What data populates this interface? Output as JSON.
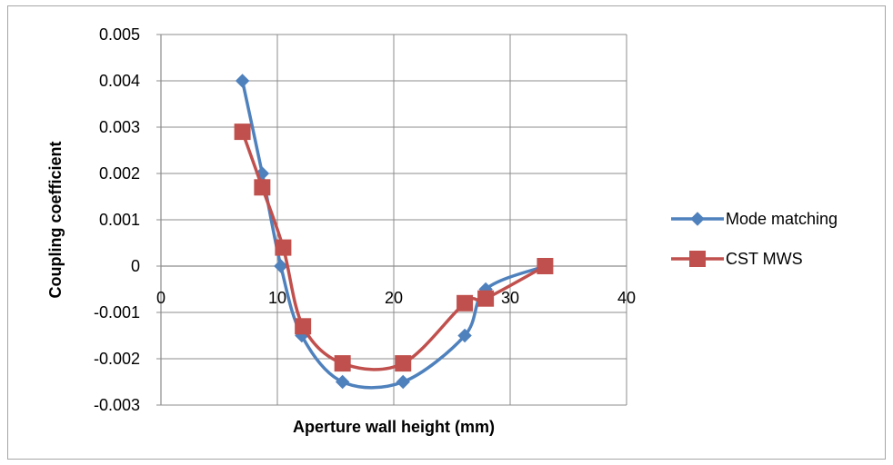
{
  "chart_data": {
    "type": "scatter",
    "title": "",
    "xlabel": "Aperture wall height (mm)",
    "ylabel": "Coupling coefficient",
    "xlim": [
      0,
      40
    ],
    "ylim": [
      -0.003,
      0.005
    ],
    "xticks": [
      0,
      10,
      20,
      30,
      40
    ],
    "xtick_labels": [
      "0",
      "10",
      "20",
      "30",
      "40"
    ],
    "yticks": [
      -0.003,
      -0.002,
      -0.001,
      0,
      0.001,
      0.002,
      0.003,
      0.004,
      0.005
    ],
    "ytick_labels": [
      "-0.003",
      "-0.002",
      "-0.001",
      "0",
      "0.001",
      "0.002",
      "0.003",
      "0.004",
      "0.005"
    ],
    "grid": true,
    "smoothed_lines": true,
    "legend_position": "right",
    "series": [
      {
        "name": "Mode matching",
        "color": "#4f81bd",
        "marker": "diamond",
        "x": [
          7,
          8.7,
          10.3,
          12.1,
          15.6,
          20.8,
          26.1,
          27.9,
          33
        ],
        "y": [
          0.004,
          0.002,
          0.0,
          -0.0015,
          -0.0025,
          -0.0025,
          -0.0015,
          -0.0005,
          0.0
        ]
      },
      {
        "name": "CST MWS",
        "color": "#c0504d",
        "marker": "square",
        "x": [
          7,
          8.7,
          10.5,
          12.2,
          15.6,
          20.8,
          26.1,
          27.9,
          33
        ],
        "y": [
          0.0029,
          0.0017,
          0.0004,
          -0.0013,
          -0.0021,
          -0.0021,
          -0.0008,
          -0.0007,
          0.0
        ]
      }
    ]
  }
}
